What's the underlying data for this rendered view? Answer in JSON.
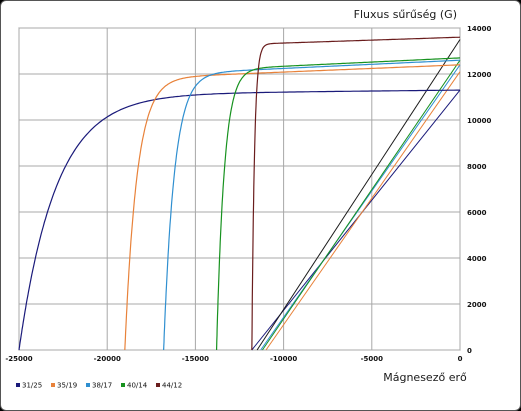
{
  "chart_data": {
    "type": "line",
    "title": "",
    "xlabel": "Mágnesező erő",
    "ylabel": "Fluxus sűrűség (G)",
    "xlim": [
      -25000,
      0
    ],
    "ylim": [
      0,
      14000
    ],
    "x_ticks": [
      -25000,
      -20000,
      -15000,
      -10000,
      -5000,
      0
    ],
    "y_ticks": [
      0,
      2000,
      4000,
      6000,
      8000,
      10000,
      12000,
      14000
    ],
    "grid": true,
    "legend_position": "bottom-left",
    "series": [
      {
        "name": "31/25",
        "color": "#1a1a7a",
        "Hc": -25000,
        "Br": 11300,
        "sat": 11300,
        "low": 11100,
        "curve": 12
      },
      {
        "name": "35/19",
        "color": "#e8823a",
        "Hc": -19000,
        "Br": 12100,
        "sat": 12400,
        "low": 11800,
        "curve": 28
      },
      {
        "name": "38/17",
        "color": "#2f8fd0",
        "Hc": -16800,
        "Br": 12400,
        "sat": 12600,
        "low": 12000,
        "curve": 28
      },
      {
        "name": "40/14",
        "color": "#17921f",
        "Hc": -13800,
        "Br": 12600,
        "sat": 12700,
        "low": 12200,
        "curve": 32
      },
      {
        "name": "44/12",
        "color": "#6a1d1d",
        "Hc": -11800,
        "Br": 13500,
        "sat": 13600,
        "low": 13300,
        "curve": 80
      }
    ],
    "recoil_lines": [
      {
        "color": "#1a1a7a",
        "x": [
          -11800,
          0
        ],
        "y": [
          0,
          11300
        ]
      },
      {
        "color": "#1a1a1a",
        "x": [
          -11500,
          0
        ],
        "y": [
          0,
          13500
        ]
      },
      {
        "color": "#e8823a",
        "x": [
          -11000,
          0
        ],
        "y": [
          0,
          12100
        ]
      },
      {
        "color": "#2f8fd0",
        "x": [
          -11300,
          0
        ],
        "y": [
          0,
          12400
        ]
      },
      {
        "color": "#17921f",
        "x": [
          -11200,
          0
        ],
        "y": [
          0,
          12600
        ]
      }
    ]
  }
}
